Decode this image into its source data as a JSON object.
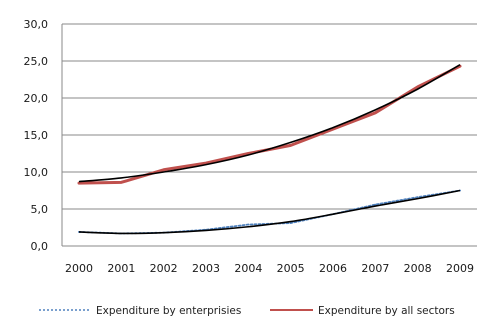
{
  "chart_data": {
    "type": "line",
    "x": [
      "2000",
      "2001",
      "2002",
      "2003",
      "2004",
      "2005",
      "2006",
      "2007",
      "2008",
      "2009"
    ],
    "ylim": [
      0,
      30
    ],
    "yticks": [
      "0,0",
      "5,0",
      "10,0",
      "15,0",
      "20,0",
      "25,0",
      "30,0"
    ],
    "ytick_values": [
      0,
      5,
      10,
      15,
      20,
      25,
      30
    ],
    "grid": true,
    "legend_position": "bottom",
    "series": [
      {
        "name": "Expenditure by enterprisies",
        "values": [
          1.9,
          1.7,
          1.8,
          2.2,
          2.9,
          3.1,
          4.3,
          5.6,
          6.6,
          7.5
        ],
        "color": "#4f81bd",
        "style": "dotted"
      },
      {
        "name": "Expenditure by all sectors",
        "values": [
          8.5,
          8.6,
          10.3,
          11.2,
          12.5,
          13.6,
          15.8,
          18.0,
          21.5,
          24.3
        ],
        "color": "#c0504d",
        "style": "solid"
      }
    ],
    "trendlines": [
      {
        "for": "Expenditure by enterprisies",
        "values": [
          1.9,
          1.7,
          1.8,
          2.1,
          2.6,
          3.3,
          4.3,
          5.4,
          6.4,
          7.5
        ],
        "color": "#000000"
      },
      {
        "for": "Expenditure by all sectors",
        "values": [
          8.7,
          9.2,
          10.0,
          11.0,
          12.3,
          14.0,
          16.0,
          18.4,
          21.2,
          24.5
        ],
        "color": "#000000"
      }
    ]
  }
}
